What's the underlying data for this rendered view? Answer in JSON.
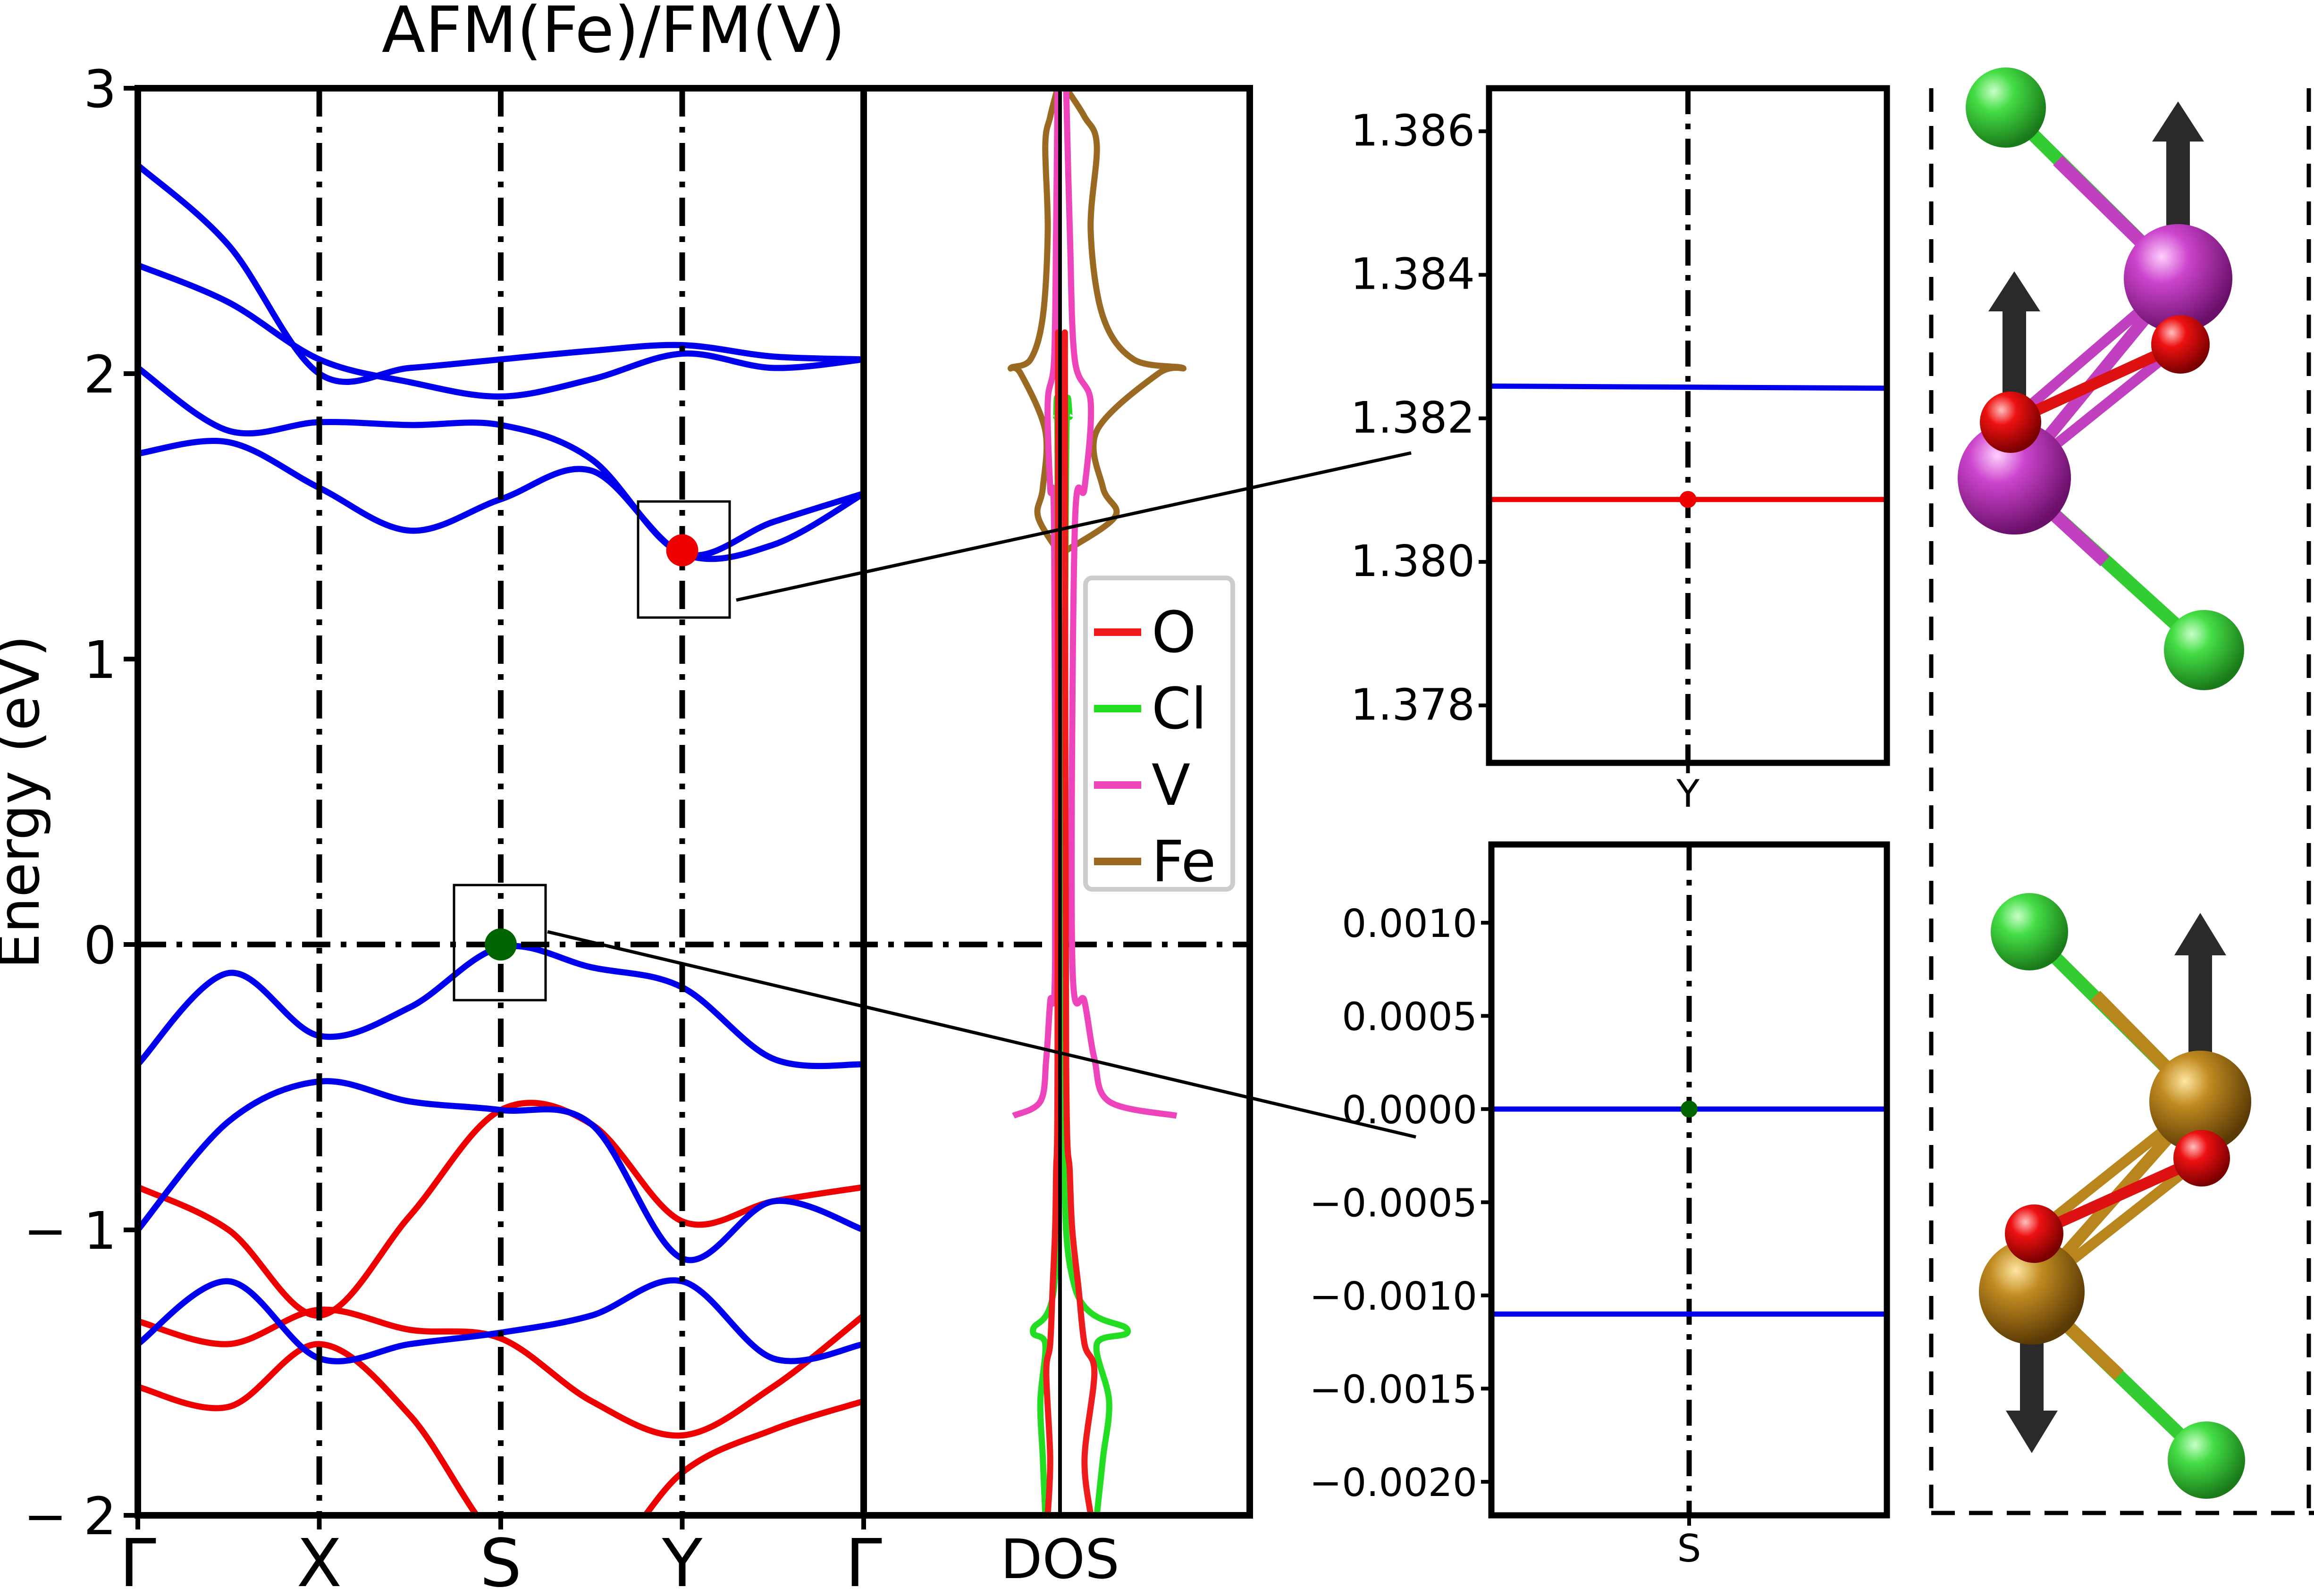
{
  "chart_data": [
    {
      "type": "line",
      "panel": "band-structure",
      "title": "AFM(Fe)/FM(V)",
      "ylabel": "Energy (eV)",
      "xlabel": "",
      "x_ticks": [
        "Γ",
        "X",
        "S",
        "Y",
        "Γ"
      ],
      "x_tick_positions": [
        0,
        1,
        2,
        3,
        4
      ],
      "xlim": [
        0,
        4
      ],
      "ylim": [
        -2,
        3
      ],
      "y_ticks": [
        3,
        2,
        1,
        0,
        -1,
        -2
      ],
      "y_tick_labels": [
        "3",
        "2",
        "1",
        "0",
        "− 1",
        "− 2"
      ],
      "fermi_level": 0,
      "grid": false,
      "colors": {
        "spin_up": "#0000ee",
        "spin_down": "#ee0000"
      },
      "highlight_points": [
        {
          "label": "CBM",
          "x": 3.0,
          "y": 1.381,
          "color": "#ee0000"
        },
        {
          "label": "VBM",
          "x": 2.0,
          "y": 0.0,
          "color": "#006400"
        }
      ],
      "bands": [
        {
          "color": "blue",
          "x": [
            0,
            0.5,
            1,
            1.5,
            2,
            2.5,
            3,
            3.5,
            4
          ],
          "y": [
            2.73,
            2.45,
            2.0,
            2.02,
            2.05,
            2.08,
            2.1,
            2.06,
            2.05
          ]
        },
        {
          "color": "blue",
          "x": [
            0,
            0.5,
            1,
            1.5,
            2,
            2.5,
            3,
            3.5,
            4
          ],
          "y": [
            2.38,
            2.25,
            2.05,
            1.97,
            1.92,
            1.98,
            2.07,
            2.02,
            2.05
          ]
        },
        {
          "color": "blue",
          "x": [
            0,
            0.5,
            1,
            1.5,
            2,
            2.5,
            3,
            3.5,
            4
          ],
          "y": [
            2.02,
            1.8,
            1.83,
            1.82,
            1.82,
            1.7,
            1.37,
            1.48,
            1.58
          ]
        },
        {
          "color": "blue",
          "x": [
            0,
            0.5,
            1,
            1.5,
            2,
            2.5,
            3,
            3.5,
            4
          ],
          "y": [
            1.72,
            1.76,
            1.6,
            1.45,
            1.56,
            1.66,
            1.37,
            1.4,
            1.58
          ]
        },
        {
          "color": "blue",
          "x": [
            0,
            0.5,
            1,
            1.5,
            2,
            2.5,
            3,
            3.5,
            4
          ],
          "y": [
            -0.42,
            -0.1,
            -0.32,
            -0.22,
            -0.01,
            -0.08,
            -0.15,
            -0.4,
            -0.42
          ]
        },
        {
          "color": "blue",
          "x": [
            0,
            0.5,
            1,
            1.5,
            2,
            2.5,
            3,
            3.5,
            4
          ],
          "y": [
            -1.0,
            -0.62,
            -0.48,
            -0.55,
            -0.58,
            -0.63,
            -1.1,
            -0.9,
            -1.0
          ]
        },
        {
          "color": "blue",
          "x": [
            0,
            0.5,
            1,
            1.5,
            2,
            2.5,
            3,
            3.5,
            4
          ],
          "y": [
            -1.4,
            -1.18,
            -1.45,
            -1.4,
            -1.36,
            -1.3,
            -1.18,
            -1.45,
            -1.4
          ]
        },
        {
          "color": "red",
          "x": [
            0,
            0.5,
            1,
            1.5,
            2,
            2.5,
            3,
            3.5,
            4
          ],
          "y": [
            -0.85,
            -1.0,
            -1.3,
            -0.95,
            -0.58,
            -0.63,
            -0.97,
            -0.9,
            -0.85
          ]
        },
        {
          "color": "red",
          "x": [
            0,
            0.5,
            1,
            1.5,
            2,
            2.5,
            3,
            3.5,
            4
          ],
          "y": [
            -1.32,
            -1.4,
            -1.28,
            -1.35,
            -1.38,
            -1.6,
            -1.72,
            -1.55,
            -1.3
          ]
        },
        {
          "color": "red",
          "x": [
            0,
            0.5,
            1,
            1.5,
            2,
            2.5,
            3,
            3.5,
            4
          ],
          "y": [
            -1.55,
            -1.62,
            -1.4,
            -1.65,
            -2.1,
            -2.2,
            -1.85,
            -1.7,
            -1.6
          ]
        }
      ]
    },
    {
      "type": "line",
      "panel": "DOS",
      "xlabel": "DOS",
      "ylim": [
        -2,
        3
      ],
      "legend": [
        "O",
        "Cl",
        "V",
        "Fe"
      ],
      "legend_placement": "right",
      "colors": {
        "O": "#ee1c1c",
        "Cl": "#22dd22",
        "V": "#ee44bb",
        "Fe": "#9a6a22"
      },
      "series": [
        {
          "name": "Fe",
          "energy": [
            1.38,
            1.5,
            1.6,
            1.8,
            2.0,
            2.02,
            2.05,
            2.2,
            2.5,
            2.8,
            2.9,
            3.0
          ],
          "value": [
            0.05,
            0.45,
            0.35,
            0.3,
            0.8,
            1.0,
            0.6,
            0.35,
            0.25,
            0.3,
            0.2,
            0.05
          ]
        },
        {
          "name": "V",
          "energy": [
            -0.6,
            -0.55,
            -0.4,
            -0.2,
            -0.05,
            1.45,
            1.6,
            1.9,
            2.05,
            2.5,
            3.0
          ],
          "value": [
            0.95,
            0.4,
            0.28,
            0.2,
            0.1,
            0.12,
            0.2,
            0.25,
            0.12,
            0.08,
            0.05
          ]
        },
        {
          "name": "Cl",
          "energy": [
            -2.0,
            -1.8,
            -1.6,
            -1.4,
            -1.35,
            -1.2,
            -0.5,
            1.7,
            1.85
          ],
          "value": [
            0.3,
            0.35,
            0.4,
            0.3,
            0.55,
            0.12,
            0.03,
            0.05,
            0.08
          ]
        },
        {
          "name": "O",
          "energy": [
            -2.0,
            -1.8,
            -1.5,
            -1.4,
            -1.2,
            -1.0,
            -0.8,
            -0.4,
            1.9,
            2.1
          ],
          "value": [
            0.25,
            0.2,
            0.28,
            0.2,
            0.15,
            0.1,
            0.08,
            0.05,
            0.04,
            0.04
          ]
        }
      ]
    },
    {
      "type": "line",
      "panel": "zoom-Y",
      "xlabel": "Y",
      "ylim": [
        1.3772,
        1.3866
      ],
      "y_ticks": [
        "1.386",
        "1.384",
        "1.382",
        "1.380",
        "1.378"
      ],
      "series": [
        {
          "name": "",
          "color": "#0000ee",
          "x": [
            -1,
            1
          ],
          "y": [
            1.38245,
            1.38242
          ]
        },
        {
          "name": "",
          "color": "#ee0000",
          "x": [
            -1,
            1
          ],
          "y": [
            1.38087,
            1.38087
          ]
        }
      ],
      "marker": {
        "x": 0,
        "y": 1.38087,
        "color": "#ee0000"
      }
    },
    {
      "type": "line",
      "panel": "zoom-S",
      "xlabel": "S",
      "ylim": [
        -0.00218,
        0.00142
      ],
      "y_ticks": [
        "0.0010",
        "0.0005",
        "0.0000",
        "−0.0005",
        "−0.0010",
        "−0.0015",
        "−0.0020"
      ],
      "series": [
        {
          "name": "",
          "color": "#0000ee",
          "x": [
            -1,
            1
          ],
          "y": [
            0.0,
            0.0
          ]
        },
        {
          "name": "",
          "color": "#0000ee",
          "x": [
            -1,
            1
          ],
          "y": [
            -0.0011,
            -0.0011
          ]
        }
      ],
      "marker": {
        "x": 0,
        "y": 0.0,
        "color": "#006400"
      }
    }
  ],
  "structures": {
    "top": {
      "metal": "V",
      "metal_color": "#c040c0",
      "spins": [
        "up",
        "up"
      ]
    },
    "bottom": {
      "metal": "Fe",
      "metal_color": "#b8861c",
      "spins": [
        "up",
        "down"
      ]
    },
    "atom_colors": {
      "Cl": "#33cc33",
      "O": "#dd1111",
      "arrow": "#2a2a2a"
    }
  }
}
